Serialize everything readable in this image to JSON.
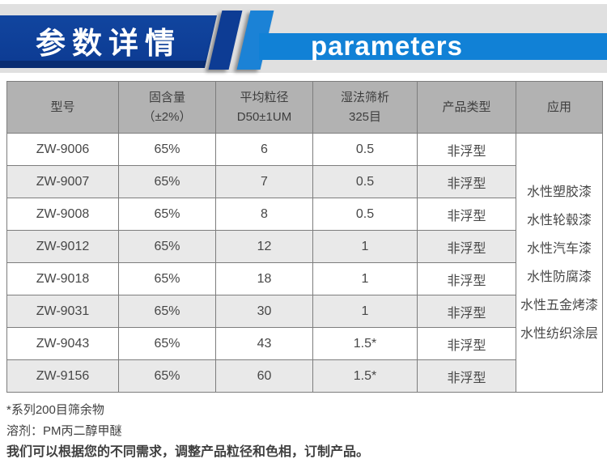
{
  "colors": {
    "navy": "#0d3c94",
    "bright_blue": "#1181d6",
    "backdrop_gray": "#e0e0e0",
    "table_header_gray": "#b2b2b2",
    "alt_row_gray": "#e9e9e9"
  },
  "header": {
    "title_cn": "参数详情",
    "title_en": "parameters"
  },
  "table": {
    "columns": [
      {
        "line1": "型号",
        "line2": ""
      },
      {
        "line1": "固含量",
        "line2": "（±2%）"
      },
      {
        "line1": "平均粒径",
        "line2": "D50±1UM"
      },
      {
        "line1": "湿法筛析",
        "line2": "325目"
      },
      {
        "line1": "产品类型",
        "line2": ""
      },
      {
        "line1": "应用",
        "line2": ""
      }
    ],
    "rows": [
      [
        "ZW-9006",
        "65%",
        "6",
        "0.5",
        "非浮型"
      ],
      [
        "ZW-9007",
        "65%",
        "7",
        "0.5",
        "非浮型"
      ],
      [
        "ZW-9008",
        "65%",
        "8",
        "0.5",
        "非浮型"
      ],
      [
        "ZW-9012",
        "65%",
        "12",
        "1",
        "非浮型"
      ],
      [
        "ZW-9018",
        "65%",
        "18",
        "1",
        "非浮型"
      ],
      [
        "ZW-9031",
        "65%",
        "30",
        "1",
        "非浮型"
      ],
      [
        "ZW-9043",
        "65%",
        "43",
        "1.5*",
        "非浮型"
      ],
      [
        "ZW-9156",
        "65%",
        "60",
        "1.5*",
        "非浮型"
      ]
    ],
    "applications": [
      "水性塑胶漆",
      "水性轮毂漆",
      "水性汽车漆",
      "水性防腐漆",
      "水性五金烤漆",
      "水性纺织涂层"
    ]
  },
  "footnotes": [
    "*系列200目筛余物",
    "溶剂：PM丙二醇甲醚",
    "我们可以根据您的不同需求，调整产品粒径和色相，订制产品。"
  ]
}
